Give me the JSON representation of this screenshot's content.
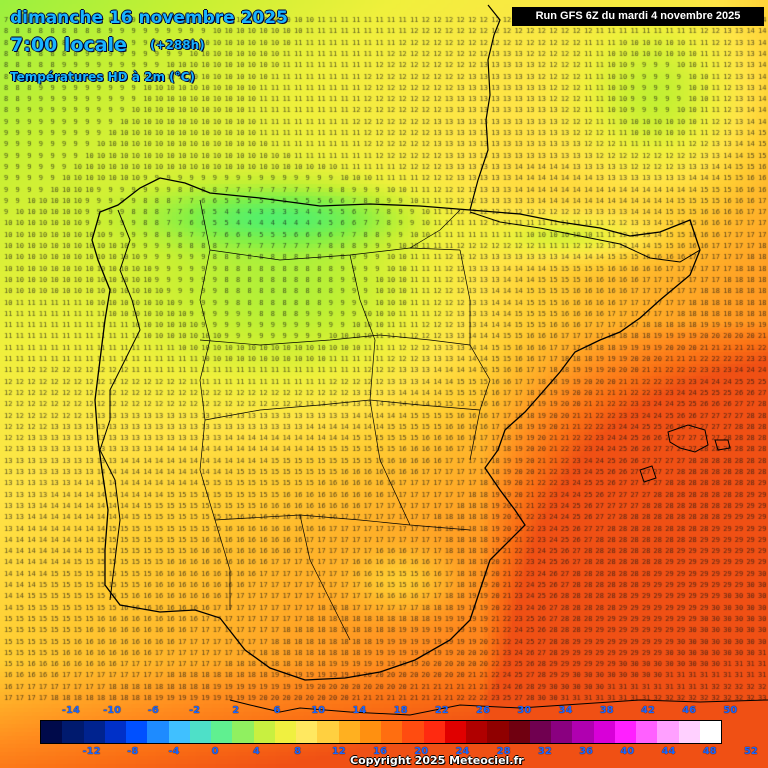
{
  "header": {
    "date": "dimanche 16 novembre 2025",
    "hour": "7:00 locale",
    "lead": "(+288h)",
    "parameter": "Températures HD à 2m (°C)"
  },
  "run_info": "Run GFS 6Z du mardi 4 novembre 2025",
  "legend": {
    "upper_labels": [
      "-14",
      "-10",
      "-6",
      "-2",
      "2",
      "6",
      "10",
      "14",
      "18",
      "22",
      "26",
      "30",
      "34",
      "38",
      "42",
      "46",
      "50"
    ],
    "lower_labels": [
      "-12",
      "-8",
      "-4",
      "0",
      "4",
      "8",
      "12",
      "16",
      "20",
      "24",
      "28",
      "32",
      "36",
      "40",
      "44",
      "48",
      "52"
    ],
    "colors": [
      "#000a4a",
      "#001a6e",
      "#00238f",
      "#0030c8",
      "#0050ff",
      "#1e8bff",
      "#40c0ff",
      "#4ee0c8",
      "#60f090",
      "#90f060",
      "#c8f040",
      "#f0f040",
      "#ffe860",
      "#ffd040",
      "#ffb020",
      "#ff9010",
      "#ff6e10",
      "#ff4c10",
      "#ff2a10",
      "#e00000",
      "#b00000",
      "#900000",
      "#700010",
      "#700050",
      "#8a0080",
      "#b000b0",
      "#d800d8",
      "#ff20ff",
      "#ff60ff",
      "#ffa0ff",
      "#ffd0ff",
      "#ffffff"
    ]
  },
  "copyright": "Copyright 2025 Meteociel.fr"
}
